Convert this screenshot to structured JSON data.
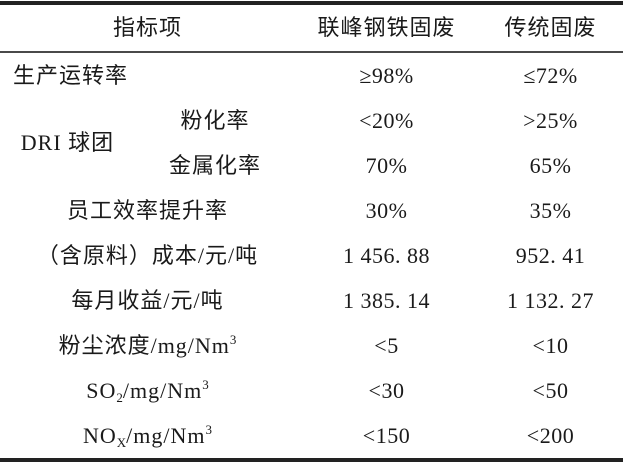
{
  "table": {
    "header": {
      "indicator": "指标项",
      "col_lianfeng": "联峰钢铁固废",
      "col_traditional": "传统固废"
    },
    "rows": {
      "production_rate": {
        "label": "生产运转率",
        "lianfeng": "≥98%",
        "traditional": "≤72%"
      },
      "dri_pellet": {
        "group_label": "DRI 球团",
        "pulverization": {
          "label": "粉化率",
          "lianfeng": "<20%",
          "traditional": ">25%"
        },
        "metallization": {
          "label": "金属化率",
          "lianfeng": "70%",
          "traditional": "65%"
        }
      },
      "staff_efficiency": {
        "label": "员工效率提升率",
        "lianfeng": "30%",
        "traditional": "35%"
      },
      "cost": {
        "label": "（含原料）成本/元/吨",
        "lianfeng": "1 456. 88",
        "traditional": "952. 41"
      },
      "monthly_income": {
        "label": "每月收益/元/吨",
        "lianfeng": "1 385. 14",
        "traditional": "1 132. 27"
      },
      "dust": {
        "label_base": "粉尘浓度/mg/Nm",
        "label_sup": "3",
        "lianfeng": "<5",
        "traditional": "<10"
      },
      "so2": {
        "label_base": "SO",
        "label_sub": "2",
        "label_rest": "/mg/Nm",
        "label_sup": "3",
        "lianfeng": "<30",
        "traditional": "<50"
      },
      "nox": {
        "label_base": "NO",
        "label_sub": "X",
        "label_rest": "/mg/Nm",
        "label_sup": "3",
        "lianfeng": "<150",
        "traditional": "<200"
      }
    }
  },
  "colors": {
    "background": "#ffffff",
    "text": "#1a1a1a",
    "rule_heavy": "#222222",
    "rule_light": "#4a4a4a"
  }
}
